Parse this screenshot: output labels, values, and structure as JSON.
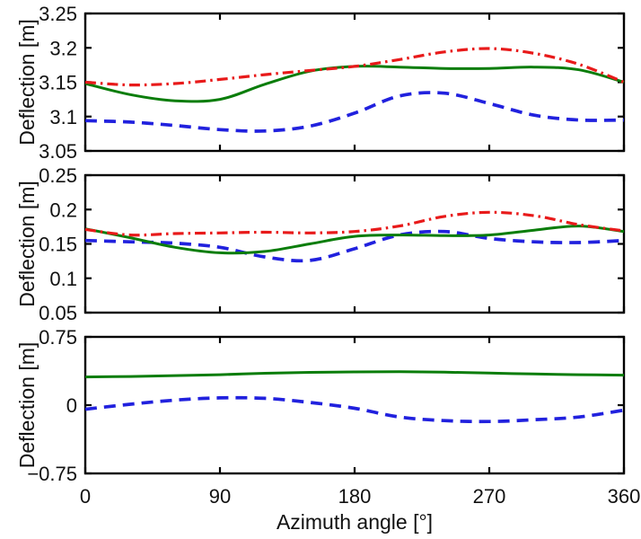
{
  "figure": {
    "background": "#ffffff",
    "axis_color": "#000000",
    "xlabel": "Azimuth angle [°]",
    "ylabel": "Deflection [m]",
    "xticks": [
      0,
      90,
      180,
      270,
      360
    ],
    "xtick_labels": [
      "0",
      "90",
      "180",
      "270",
      "360"
    ],
    "series_colors": {
      "red": "#e81a1a",
      "green": "#0a7d0a",
      "blue": "#2121de"
    }
  },
  "chart_data": [
    {
      "type": "line",
      "subplot": "top",
      "ylabel": "Deflection [m]",
      "xlabel": "",
      "x": [
        0,
        30,
        60,
        90,
        120,
        150,
        180,
        210,
        240,
        270,
        300,
        330,
        360
      ],
      "xlim": [
        0,
        360
      ],
      "ylim": [
        3.05,
        3.25
      ],
      "yticks": [
        3.05,
        3.1,
        3.15,
        3.2,
        3.25
      ],
      "ytick_labels": [
        "3.05",
        "3.1",
        "3.15",
        "3.2",
        "3.25"
      ],
      "grid": false,
      "legend": null,
      "series": [
        {
          "name": "blue-dashed",
          "color": "#2121de",
          "linestyle": "dashed",
          "values": [
            3.094,
            3.092,
            3.087,
            3.081,
            3.079,
            3.086,
            3.105,
            3.13,
            3.134,
            3.119,
            3.102,
            3.095,
            3.095
          ]
        },
        {
          "name": "green-solid",
          "color": "#0a7d0a",
          "linestyle": "solid",
          "values": [
            3.148,
            3.132,
            3.123,
            3.125,
            3.147,
            3.166,
            3.173,
            3.172,
            3.17,
            3.17,
            3.172,
            3.168,
            3.15
          ]
        },
        {
          "name": "red-dashdot",
          "color": "#e81a1a",
          "linestyle": "dashdot",
          "values": [
            3.15,
            3.146,
            3.148,
            3.154,
            3.161,
            3.167,
            3.173,
            3.183,
            3.194,
            3.199,
            3.192,
            3.176,
            3.15
          ]
        }
      ]
    },
    {
      "type": "line",
      "subplot": "middle",
      "ylabel": "Deflection [m]",
      "xlabel": "",
      "x": [
        0,
        30,
        60,
        90,
        120,
        150,
        180,
        210,
        240,
        270,
        300,
        330,
        360
      ],
      "xlim": [
        0,
        360
      ],
      "ylim": [
        0.05,
        0.25
      ],
      "yticks": [
        0.05,
        0.1,
        0.15,
        0.2,
        0.25
      ],
      "ytick_labels": [
        "0.05",
        "0.1",
        "0.15",
        "0.2",
        "0.25"
      ],
      "grid": false,
      "legend": null,
      "series": [
        {
          "name": "blue-dashed",
          "color": "#2121de",
          "linestyle": "dashed",
          "values": [
            0.155,
            0.153,
            0.151,
            0.145,
            0.131,
            0.126,
            0.143,
            0.163,
            0.168,
            0.158,
            0.153,
            0.152,
            0.155
          ]
        },
        {
          "name": "green-solid",
          "color": "#0a7d0a",
          "linestyle": "solid",
          "values": [
            0.172,
            0.159,
            0.145,
            0.137,
            0.139,
            0.15,
            0.161,
            0.163,
            0.162,
            0.163,
            0.17,
            0.176,
            0.168
          ]
        },
        {
          "name": "red-dashdot",
          "color": "#e81a1a",
          "linestyle": "dashdot",
          "values": [
            0.171,
            0.163,
            0.165,
            0.166,
            0.167,
            0.166,
            0.168,
            0.176,
            0.19,
            0.196,
            0.191,
            0.178,
            0.169
          ]
        }
      ]
    },
    {
      "type": "line",
      "subplot": "bottom",
      "ylabel": "Deflection [m]",
      "xlabel": "Azimuth angle [°]",
      "x": [
        0,
        30,
        60,
        90,
        120,
        150,
        180,
        210,
        240,
        270,
        300,
        330,
        360
      ],
      "xlim": [
        0,
        360
      ],
      "ylim": [
        -0.75,
        0.75
      ],
      "yticks": [
        -0.75,
        0,
        0.75
      ],
      "ytick_labels": [
        "−0.75",
        "0",
        "0.75"
      ],
      "grid": false,
      "legend": null,
      "series": [
        {
          "name": "blue-dashed",
          "color": "#2121de",
          "linestyle": "dashed",
          "values": [
            -0.045,
            0.01,
            0.055,
            0.08,
            0.075,
            0.03,
            -0.035,
            -0.13,
            -0.17,
            -0.18,
            -0.16,
            -0.13,
            -0.055
          ]
        },
        {
          "name": "green-solid",
          "color": "#0a7d0a",
          "linestyle": "solid",
          "values": [
            0.31,
            0.315,
            0.325,
            0.335,
            0.35,
            0.36,
            0.365,
            0.367,
            0.362,
            0.352,
            0.342,
            0.335,
            0.33
          ]
        }
      ]
    }
  ]
}
